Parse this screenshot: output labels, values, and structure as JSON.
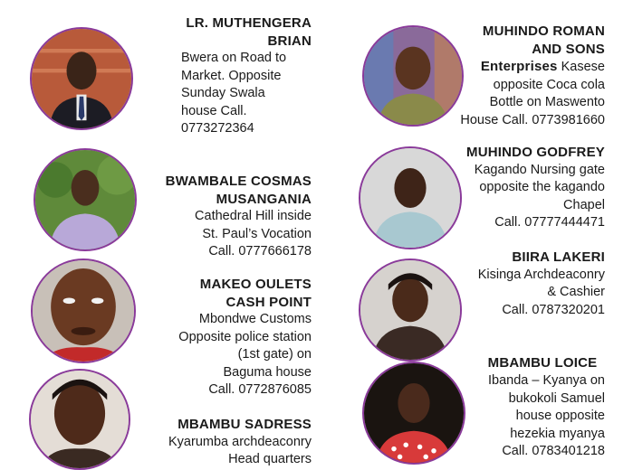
{
  "entries": [
    {
      "name_lines": [
        "LR. MUTHENGERA",
        "BRIAN"
      ],
      "detail_lines": [
        "Bwera on Road to",
        "Market. Opposite",
        "Sunday Swala",
        "house     Call.",
        "0773272364"
      ]
    },
    {
      "name_lines": [
        "BWAMBALE COSMAS",
        "MUSANGANIA"
      ],
      "detail_lines": [
        "Cathedral Hill inside",
        "St. Paul’s Vocation",
        "Call. 0777666178"
      ]
    },
    {
      "name_lines": [
        "MAKEO OULETS",
        "CASH POINT"
      ],
      "detail_lines": [
        "Mbondwe Customs",
        "Opposite police station",
        "(1st gate) on",
        "Baguma house",
        "Call. 0772876085"
      ]
    },
    {
      "name_lines": [
        "MBAMBU SADRESS"
      ],
      "detail_lines": [
        "Kyarumba archdeaconry",
        "Head quarters"
      ]
    },
    {
      "name_lines": [
        "MUHINDO ROMAN",
        "AND SONS"
      ],
      "name_inline": "Enterprises",
      "detail_lines": [
        "Kasese",
        "opposite Coca cola",
        "Bottle on Maswento",
        "House Call. 0773981660"
      ]
    },
    {
      "name_lines": [
        "MUHINDO GODFREY"
      ],
      "detail_lines": [
        "Kagando Nursing gate",
        "opposite the kagando",
        "Chapel",
        "Call. 07777444471"
      ]
    },
    {
      "name_lines": [
        "BIIRA LAKERI"
      ],
      "detail_lines": [
        "Kisinga Archdeaconry",
        "& Cashier",
        "Call. 0787320201"
      ]
    },
    {
      "name_lines": [
        "MBAMBU LOICE"
      ],
      "detail_lines": [
        "Ibanda – Kyanya on",
        "bukokoli Samuel",
        "house opposite",
        "hezekia myanya",
        "Call. 0783401218"
      ]
    }
  ]
}
